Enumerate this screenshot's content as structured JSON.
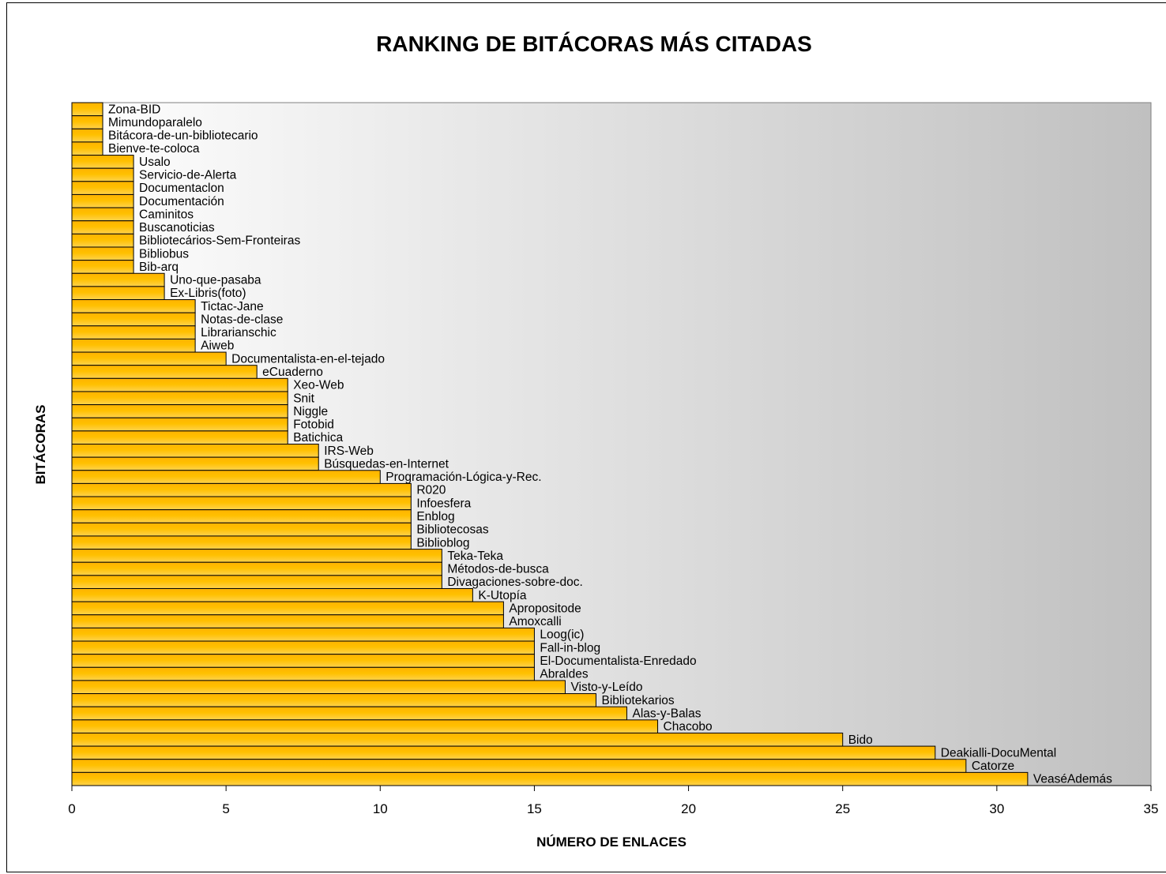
{
  "chart_data": {
    "type": "bar",
    "orientation": "horizontal",
    "title": "RANKING DE BITÁCORAS MÁS CITADAS",
    "xlabel": "NÚMERO DE ENLACES",
    "ylabel": "BITÁCORAS",
    "xlim": [
      0,
      35
    ],
    "xticks": [
      0,
      5,
      10,
      15,
      20,
      25,
      30,
      35
    ],
    "grid": false,
    "legend": "none",
    "bar_color": "#FFC000",
    "bar_edge_color": "#000000",
    "background_gradient": [
      "#FFFFFF",
      "#C0C0C0"
    ],
    "categories": [
      "Zona-BID",
      "Mimundoparalelo",
      "Bitácora-de-un-bibliotecario",
      "Bienve-te-coloca",
      "Usalo",
      "Servicio-de-Alerta",
      "Documentaclon",
      "Documentación",
      "Caminitos",
      "Buscanoticias",
      "Bibliotecários-Sem-Fronteiras",
      "Bibliobus",
      "Bib-arq",
      "Uno-que-pasaba",
      "Ex-Libris(foto)",
      "Tictac-Jane",
      "Notas-de-clase",
      "Librarianschic",
      "Aiweb",
      "Documentalista-en-el-tejado",
      "eCuaderno",
      "Xeo-Web",
      "Snit",
      "Niggle",
      "Fotobid",
      "Batichica",
      "IRS-Web",
      "Búsquedas-en-Internet",
      "Programación-Lógica-y-Rec.",
      "R020",
      "Infoesfera",
      "Enblog",
      "Bibliotecosas",
      "Biblioblog",
      "Teka-Teka",
      "Métodos-de-busca",
      "Divagaciones-sobre-doc.",
      "K-Utopía",
      "Apropositode",
      "Amoxcalli",
      "Loog(ic)",
      "Fall-in-blog",
      "El-Documentalista-Enredado",
      "Abraldes",
      "Visto-y-Leído",
      "Bibliotekarios",
      "Alas-y-Balas",
      "Chacobo",
      "Bido",
      "Deakialli-DocuMental",
      "Catorze",
      "VeaséAdemás"
    ],
    "values": [
      1,
      1,
      1,
      1,
      2,
      2,
      2,
      2,
      2,
      2,
      2,
      2,
      2,
      3,
      3,
      4,
      4,
      4,
      4,
      5,
      6,
      7,
      7,
      7,
      7,
      7,
      8,
      8,
      10,
      11,
      11,
      11,
      11,
      11,
      12,
      12,
      12,
      13,
      14,
      14,
      15,
      15,
      15,
      15,
      16,
      17,
      18,
      19,
      25,
      28,
      29,
      31
    ]
  }
}
